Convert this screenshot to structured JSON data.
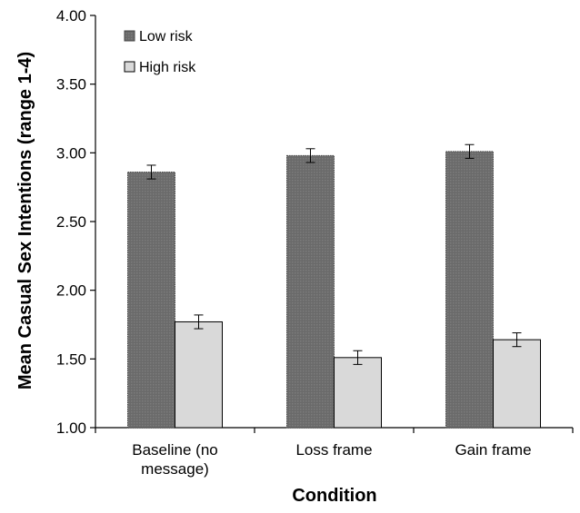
{
  "chart_data": {
    "type": "bar",
    "categories": [
      "Baseline (no message)",
      "Loss frame",
      "Gain frame"
    ],
    "category_lines": [
      [
        "Baseline (no",
        "message)"
      ],
      [
        "Loss frame"
      ],
      [
        "Gain frame"
      ]
    ],
    "series": [
      {
        "name": "Low risk",
        "values": [
          2.86,
          2.98,
          3.01
        ],
        "error": [
          0.05,
          0.05,
          0.05
        ],
        "color": "#6e6e6e",
        "pattern": "dotted"
      },
      {
        "name": "High risk",
        "values": [
          1.77,
          1.51,
          1.64
        ],
        "error": [
          0.05,
          0.05,
          0.05
        ],
        "color": "#d9d9d9",
        "pattern": "solid"
      }
    ],
    "xlabel": "Condition",
    "ylabel": "Mean Casual Sex Intentions (range 1-4)",
    "ylim": [
      1.0,
      4.0
    ],
    "yticks": [
      "1.00",
      "1.50",
      "2.00",
      "2.50",
      "3.00",
      "3.50",
      "4.00"
    ],
    "grid": false,
    "legend_position": "top-left"
  }
}
